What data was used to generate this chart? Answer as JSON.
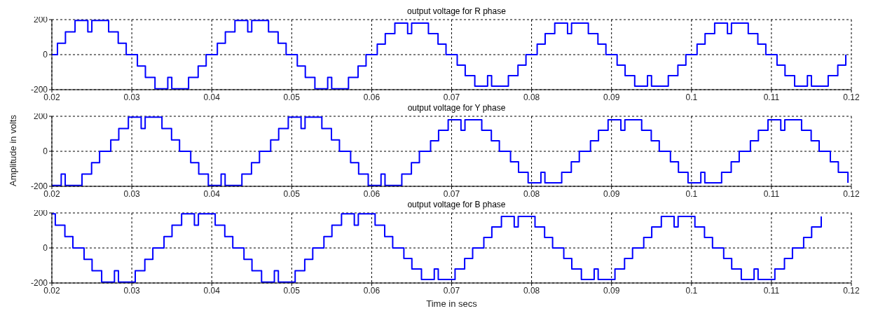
{
  "chart_data": [
    {
      "type": "step",
      "title": "output voltage for R phase",
      "xlim": [
        0.02,
        0.12
      ],
      "xticks": [
        0.02,
        0.03,
        0.04,
        0.05,
        0.06,
        0.07,
        0.08,
        0.09,
        0.1,
        0.11,
        0.12
      ],
      "ylim": [
        -200,
        200
      ],
      "yticks": [
        -200,
        0,
        200
      ],
      "grid": true,
      "marker": "none",
      "series": [
        {
          "color": "#0000ff",
          "x": [
            0.02,
            0.0207,
            0.0217,
            0.0229,
            0.0245,
            0.025,
            0.0271,
            0.0283,
            0.0293,
            0.03,
            0.0307,
            0.0317,
            0.0329,
            0.0345,
            0.035,
            0.0371,
            0.0383,
            0.0393,
            0.04,
            0.0407,
            0.0417,
            0.0429,
            0.0445,
            0.045,
            0.0471,
            0.0483,
            0.0493,
            0.05,
            0.0507,
            0.0517,
            0.0529,
            0.0545,
            0.055,
            0.0571,
            0.0583,
            0.0593,
            0.06,
            0.0607,
            0.0617,
            0.0629,
            0.0645,
            0.065,
            0.0671,
            0.0683,
            0.0693,
            0.07,
            0.0707,
            0.0717,
            0.0729,
            0.0745,
            0.075,
            0.0771,
            0.0783,
            0.0793,
            0.08,
            0.0807,
            0.0817,
            0.0829,
            0.0845,
            0.085,
            0.0871,
            0.0883,
            0.0893,
            0.09,
            0.0907,
            0.0917,
            0.0929,
            0.0945,
            0.095,
            0.0971,
            0.0983,
            0.0993,
            0.1,
            0.1007,
            0.1017,
            0.1029,
            0.1045,
            0.105,
            0.1071,
            0.1083,
            0.1093,
            0.11,
            0.1107,
            0.1117,
            0.1129,
            0.1145,
            0.115,
            0.1171,
            0.1183,
            0.1193
          ],
          "values": [
            0,
            65,
            130,
            195,
            130,
            195,
            130,
            65,
            0,
            0,
            -65,
            -130,
            -195,
            -130,
            -195,
            -130,
            -65,
            0,
            0,
            65,
            130,
            195,
            130,
            195,
            130,
            65,
            0,
            0,
            -65,
            -130,
            -195,
            -130,
            -195,
            -130,
            -65,
            0,
            0,
            60,
            120,
            180,
            120,
            180,
            120,
            60,
            0,
            0,
            -60,
            -120,
            -180,
            -120,
            -180,
            -120,
            -60,
            0,
            0,
            60,
            120,
            180,
            120,
            180,
            120,
            60,
            0,
            0,
            -60,
            -120,
            -180,
            -120,
            -180,
            -120,
            -60,
            0,
            0,
            60,
            120,
            180,
            120,
            180,
            120,
            60,
            0,
            0,
            -60,
            -120,
            -180,
            -120,
            -180,
            -120,
            -60,
            0
          ]
        }
      ]
    },
    {
      "type": "step",
      "title": "output voltage for Y phase",
      "ylabel": "Amplitude in volts",
      "xlim": [
        0.02,
        0.12
      ],
      "xticks": [
        0.02,
        0.03,
        0.04,
        0.05,
        0.06,
        0.07,
        0.08,
        0.09,
        0.1,
        0.11,
        0.12
      ],
      "ylim": [
        -200,
        200
      ],
      "yticks": [
        -200,
        0,
        200
      ],
      "grid": true,
      "marker": "none",
      "series": [
        {
          "color": "#0000ff",
          "x": [
            0.02,
            0.02117,
            0.02167,
            0.02377,
            0.02497,
            0.02597,
            0.02667,
            0.02737,
            0.02837,
            0.02957,
            0.03117,
            0.03167,
            0.03377,
            0.03497,
            0.03597,
            0.03667,
            0.03737,
            0.03837,
            0.03957,
            0.04117,
            0.04167,
            0.04377,
            0.04497,
            0.04597,
            0.04667,
            0.04737,
            0.04837,
            0.04957,
            0.05117,
            0.05167,
            0.05377,
            0.05497,
            0.05597,
            0.05667,
            0.05737,
            0.05837,
            0.05957,
            0.06117,
            0.06167,
            0.06377,
            0.06497,
            0.06597,
            0.06667,
            0.06737,
            0.06837,
            0.06957,
            0.07117,
            0.07167,
            0.07377,
            0.07497,
            0.07597,
            0.07667,
            0.07737,
            0.07837,
            0.07957,
            0.08117,
            0.08167,
            0.08377,
            0.08497,
            0.08597,
            0.08667,
            0.08737,
            0.08837,
            0.08957,
            0.09117,
            0.09167,
            0.09377,
            0.09497,
            0.09597,
            0.09667,
            0.09737,
            0.09837,
            0.09957,
            0.10117,
            0.10167,
            0.10377,
            0.10497,
            0.10597,
            0.10667,
            0.10737,
            0.10837,
            0.10957,
            0.11117,
            0.11167,
            0.11377,
            0.11497,
            0.11597,
            0.11667,
            0.11737,
            0.11837,
            0.11957
          ],
          "values": [
            -195,
            -130,
            -195,
            -130,
            -65,
            0,
            0,
            65,
            130,
            195,
            130,
            195,
            130,
            65,
            0,
            0,
            -65,
            -130,
            -195,
            -130,
            -195,
            -130,
            -65,
            0,
            0,
            65,
            130,
            195,
            130,
            195,
            130,
            65,
            0,
            0,
            -65,
            -130,
            -195,
            -130,
            -195,
            -130,
            -65,
            0,
            0,
            60,
            120,
            180,
            120,
            180,
            120,
            60,
            0,
            0,
            -60,
            -120,
            -180,
            -120,
            -180,
            -120,
            -60,
            0,
            0,
            60,
            120,
            180,
            120,
            180,
            120,
            60,
            0,
            0,
            -60,
            -120,
            -180,
            -120,
            -180,
            -120,
            -60,
            0,
            0,
            60,
            120,
            180,
            120,
            180,
            120,
            60,
            0,
            0,
            -60,
            -120,
            -180
          ]
        }
      ]
    },
    {
      "type": "step",
      "title": "output voltage for B phase",
      "xlabel": "Time in secs",
      "xlim": [
        0.02,
        0.12
      ],
      "xticks": [
        0.02,
        0.03,
        0.04,
        0.05,
        0.06,
        0.07,
        0.08,
        0.09,
        0.1,
        0.11,
        0.12
      ],
      "ylim": [
        -200,
        200
      ],
      "yticks": [
        -200,
        0,
        200
      ],
      "grid": true,
      "marker": "none",
      "series": [
        {
          "color": "#0000ff",
          "x": [
            0.02,
            0.02043,
            0.02163,
            0.02263,
            0.02333,
            0.02403,
            0.02503,
            0.02623,
            0.02783,
            0.02833,
            0.03043,
            0.03163,
            0.03263,
            0.03333,
            0.03403,
            0.03503,
            0.03623,
            0.03783,
            0.03833,
            0.04043,
            0.04163,
            0.04263,
            0.04333,
            0.04403,
            0.04503,
            0.04623,
            0.04783,
            0.04833,
            0.05043,
            0.05163,
            0.05263,
            0.05333,
            0.05403,
            0.05503,
            0.05623,
            0.05783,
            0.05833,
            0.06043,
            0.06163,
            0.06263,
            0.06333,
            0.06403,
            0.06503,
            0.06623,
            0.06783,
            0.06833,
            0.07043,
            0.07163,
            0.07263,
            0.07333,
            0.07403,
            0.07503,
            0.07623,
            0.07783,
            0.07833,
            0.08043,
            0.08163,
            0.08263,
            0.08333,
            0.08403,
            0.08503,
            0.08623,
            0.08783,
            0.08833,
            0.09043,
            0.09163,
            0.09263,
            0.09333,
            0.09403,
            0.09503,
            0.09623,
            0.09783,
            0.09833,
            0.10043,
            0.10163,
            0.10263,
            0.10333,
            0.10403,
            0.10503,
            0.10623,
            0.10783,
            0.10833,
            0.11043,
            0.11163,
            0.11263,
            0.11333,
            0.11403,
            0.11503,
            0.11623
          ],
          "values": [
            195,
            130,
            65,
            0,
            0,
            -65,
            -130,
            -195,
            -130,
            -195,
            -130,
            -65,
            0,
            0,
            65,
            130,
            195,
            130,
            195,
            130,
            65,
            0,
            0,
            -65,
            -130,
            -195,
            -130,
            -195,
            -130,
            -65,
            0,
            0,
            65,
            130,
            195,
            130,
            195,
            130,
            65,
            0,
            0,
            -60,
            -120,
            -180,
            -120,
            -180,
            -120,
            -60,
            0,
            0,
            60,
            120,
            180,
            120,
            180,
            120,
            60,
            0,
            0,
            -60,
            -120,
            -180,
            -120,
            -180,
            -120,
            -60,
            0,
            0,
            60,
            120,
            180,
            120,
            180,
            120,
            60,
            0,
            0,
            -60,
            -120,
            -180,
            -120,
            -180,
            -120,
            -60,
            0,
            0,
            60,
            120,
            180
          ]
        }
      ]
    }
  ]
}
